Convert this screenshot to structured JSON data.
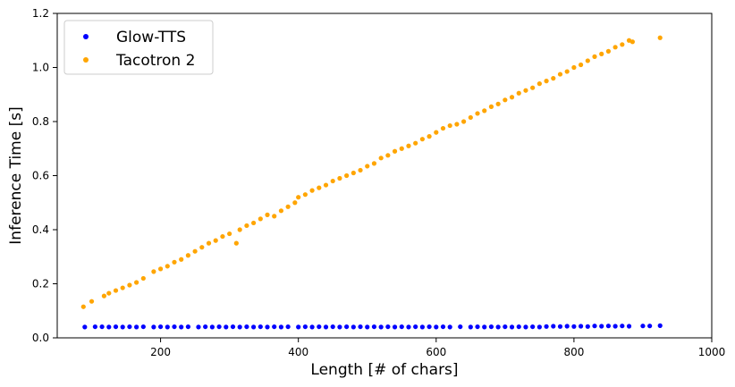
{
  "chart_data": {
    "type": "scatter",
    "xlabel": "Length [# of chars]",
    "ylabel": "Inference Time [s]",
    "xlim": [
      50,
      1000
    ],
    "ylim": [
      0,
      1.2
    ],
    "x_ticks": [
      200,
      400,
      600,
      800,
      1000
    ],
    "y_ticks": [
      0.0,
      0.2,
      0.4,
      0.6,
      0.8,
      1.0,
      1.2
    ],
    "x_tick_labels": [
      "200",
      "400",
      "600",
      "800",
      "1000"
    ],
    "y_tick_labels": [
      "0.0",
      "0.2",
      "0.4",
      "0.6",
      "0.8",
      "1.0",
      "1.2"
    ],
    "grid": false,
    "legend_position": "top-left",
    "series": [
      {
        "name": "Glow-TTS",
        "color": "#0000ff",
        "points": [
          [
            90,
            0.04
          ],
          [
            105,
            0.041
          ],
          [
            115,
            0.041
          ],
          [
            125,
            0.04
          ],
          [
            135,
            0.041
          ],
          [
            145,
            0.04
          ],
          [
            155,
            0.041
          ],
          [
            165,
            0.04
          ],
          [
            175,
            0.041
          ],
          [
            190,
            0.04
          ],
          [
            200,
            0.041
          ],
          [
            210,
            0.04
          ],
          [
            220,
            0.041
          ],
          [
            230,
            0.04
          ],
          [
            240,
            0.041
          ],
          [
            255,
            0.04
          ],
          [
            265,
            0.041
          ],
          [
            275,
            0.04
          ],
          [
            285,
            0.041
          ],
          [
            295,
            0.04
          ],
          [
            305,
            0.041
          ],
          [
            315,
            0.04
          ],
          [
            325,
            0.041
          ],
          [
            335,
            0.04
          ],
          [
            345,
            0.041
          ],
          [
            355,
            0.04
          ],
          [
            365,
            0.041
          ],
          [
            375,
            0.04
          ],
          [
            385,
            0.041
          ],
          [
            400,
            0.04
          ],
          [
            410,
            0.041
          ],
          [
            420,
            0.04
          ],
          [
            430,
            0.041
          ],
          [
            440,
            0.04
          ],
          [
            450,
            0.041
          ],
          [
            460,
            0.04
          ],
          [
            470,
            0.041
          ],
          [
            480,
            0.04
          ],
          [
            490,
            0.041
          ],
          [
            500,
            0.04
          ],
          [
            510,
            0.041
          ],
          [
            520,
            0.04
          ],
          [
            530,
            0.041
          ],
          [
            540,
            0.04
          ],
          [
            550,
            0.041
          ],
          [
            560,
            0.04
          ],
          [
            570,
            0.041
          ],
          [
            580,
            0.04
          ],
          [
            590,
            0.041
          ],
          [
            600,
            0.04
          ],
          [
            610,
            0.041
          ],
          [
            620,
            0.04
          ],
          [
            635,
            0.041
          ],
          [
            650,
            0.04
          ],
          [
            660,
            0.041
          ],
          [
            670,
            0.04
          ],
          [
            680,
            0.041
          ],
          [
            690,
            0.04
          ],
          [
            700,
            0.041
          ],
          [
            710,
            0.04
          ],
          [
            720,
            0.041
          ],
          [
            730,
            0.04
          ],
          [
            740,
            0.041
          ],
          [
            750,
            0.04
          ],
          [
            760,
            0.042
          ],
          [
            770,
            0.043
          ],
          [
            780,
            0.042
          ],
          [
            790,
            0.043
          ],
          [
            800,
            0.042
          ],
          [
            810,
            0.043
          ],
          [
            820,
            0.042
          ],
          [
            830,
            0.044
          ],
          [
            840,
            0.043
          ],
          [
            850,
            0.044
          ],
          [
            860,
            0.043
          ],
          [
            870,
            0.044
          ],
          [
            880,
            0.043
          ],
          [
            900,
            0.044
          ],
          [
            910,
            0.044
          ],
          [
            925,
            0.045
          ]
        ]
      },
      {
        "name": "Tacotron 2",
        "color": "#ffa500",
        "points": [
          [
            88,
            0.115
          ],
          [
            100,
            0.135
          ],
          [
            118,
            0.155
          ],
          [
            125,
            0.165
          ],
          [
            135,
            0.175
          ],
          [
            145,
            0.185
          ],
          [
            155,
            0.195
          ],
          [
            165,
            0.205
          ],
          [
            175,
            0.22
          ],
          [
            190,
            0.245
          ],
          [
            200,
            0.255
          ],
          [
            210,
            0.265
          ],
          [
            220,
            0.28
          ],
          [
            230,
            0.29
          ],
          [
            240,
            0.305
          ],
          [
            250,
            0.32
          ],
          [
            260,
            0.335
          ],
          [
            270,
            0.35
          ],
          [
            280,
            0.36
          ],
          [
            290,
            0.375
          ],
          [
            300,
            0.385
          ],
          [
            310,
            0.35
          ],
          [
            315,
            0.4
          ],
          [
            325,
            0.415
          ],
          [
            335,
            0.425
          ],
          [
            345,
            0.44
          ],
          [
            355,
            0.455
          ],
          [
            365,
            0.45
          ],
          [
            375,
            0.47
          ],
          [
            385,
            0.485
          ],
          [
            395,
            0.5
          ],
          [
            400,
            0.52
          ],
          [
            410,
            0.53
          ],
          [
            420,
            0.545
          ],
          [
            430,
            0.555
          ],
          [
            440,
            0.565
          ],
          [
            450,
            0.58
          ],
          [
            460,
            0.59
          ],
          [
            470,
            0.6
          ],
          [
            480,
            0.61
          ],
          [
            490,
            0.62
          ],
          [
            500,
            0.635
          ],
          [
            510,
            0.645
          ],
          [
            520,
            0.665
          ],
          [
            530,
            0.675
          ],
          [
            540,
            0.69
          ],
          [
            550,
            0.7
          ],
          [
            560,
            0.71
          ],
          [
            570,
            0.72
          ],
          [
            580,
            0.735
          ],
          [
            590,
            0.745
          ],
          [
            600,
            0.76
          ],
          [
            610,
            0.775
          ],
          [
            620,
            0.785
          ],
          [
            630,
            0.79
          ],
          [
            640,
            0.8
          ],
          [
            650,
            0.815
          ],
          [
            660,
            0.83
          ],
          [
            670,
            0.84
          ],
          [
            680,
            0.855
          ],
          [
            690,
            0.865
          ],
          [
            700,
            0.88
          ],
          [
            710,
            0.89
          ],
          [
            720,
            0.905
          ],
          [
            730,
            0.915
          ],
          [
            740,
            0.925
          ],
          [
            750,
            0.94
          ],
          [
            760,
            0.95
          ],
          [
            770,
            0.96
          ],
          [
            780,
            0.975
          ],
          [
            790,
            0.985
          ],
          [
            800,
            1.0
          ],
          [
            810,
            1.01
          ],
          [
            820,
            1.025
          ],
          [
            830,
            1.04
          ],
          [
            840,
            1.05
          ],
          [
            850,
            1.06
          ],
          [
            860,
            1.075
          ],
          [
            870,
            1.085
          ],
          [
            880,
            1.1
          ],
          [
            885,
            1.095
          ],
          [
            925,
            1.11
          ]
        ]
      }
    ]
  }
}
